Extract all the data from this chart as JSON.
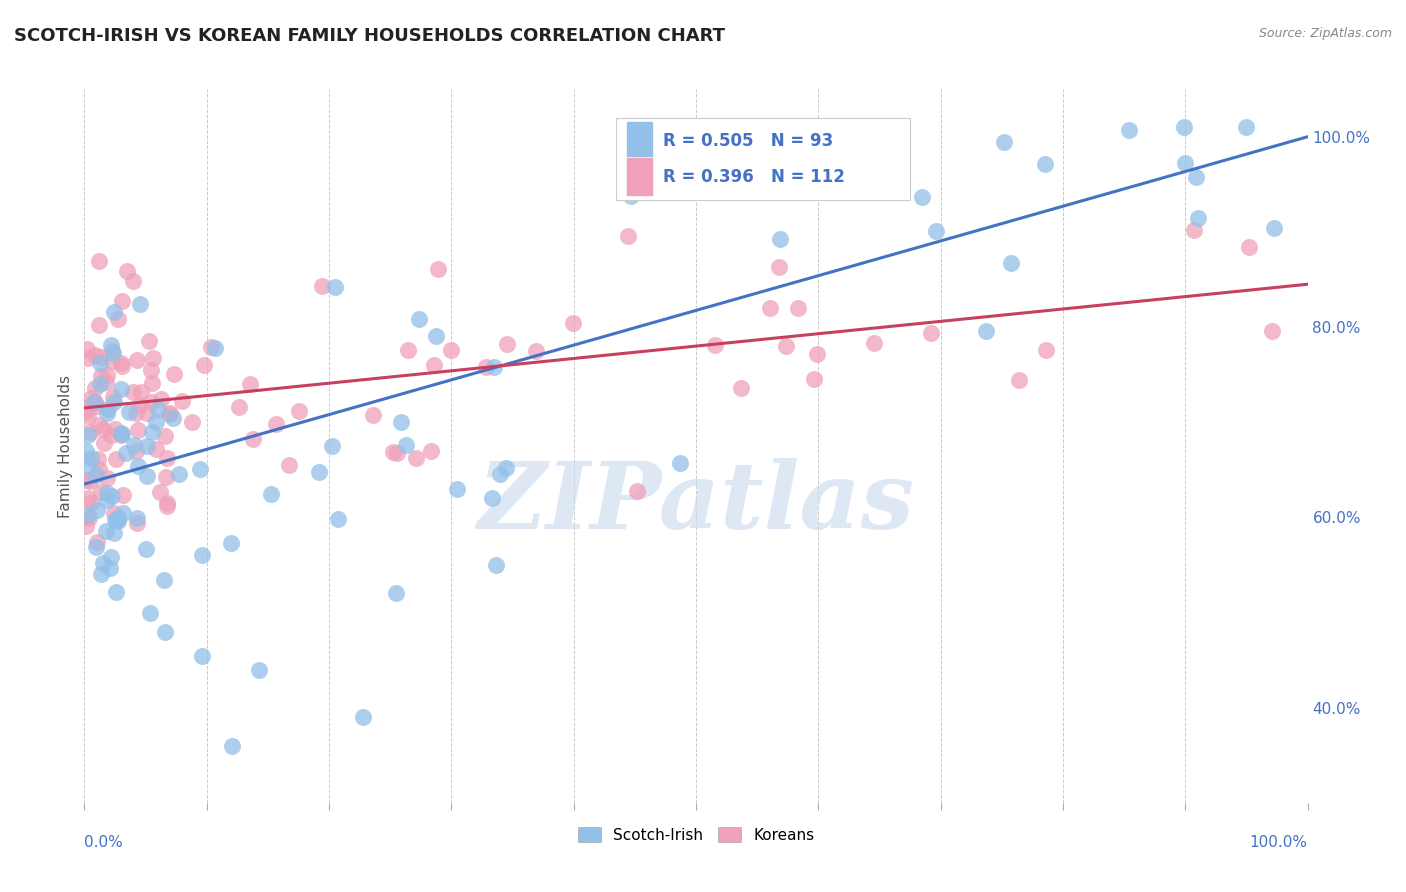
{
  "title": "SCOTCH-IRISH VS KOREAN FAMILY HOUSEHOLDS CORRELATION CHART",
  "source": "Source: ZipAtlas.com",
  "legend_label1": "Scotch-Irish",
  "legend_label2": "Koreans",
  "scotch_irish_color": "#92C0E8",
  "korean_color": "#F0A0B8",
  "scotch_irish_line_color": "#4472C4",
  "korean_line_color": "#C84060",
  "watermark_text": "ZIPatlas",
  "watermark_color": "#C8D8EE",
  "background_color": "#ffffff",
  "grid_color": "#CCCCCC",
  "xlim": [
    0.0,
    1.0
  ],
  "ylim": [
    0.3,
    1.05
  ],
  "right_yticks": [
    0.4,
    0.6,
    0.8,
    1.0
  ],
  "right_ytick_labels": [
    "40.0%",
    "60.0%",
    "80.0%",
    "100.0%"
  ],
  "tick_color": "#4472C4",
  "ylabel": "Family Households",
  "legend_r1": "R = 0.505",
  "legend_n1": "N = 93",
  "legend_r2": "R = 0.396",
  "legend_n2": "N = 112",
  "si_line_x": [
    0.0,
    1.0
  ],
  "si_line_y": [
    0.635,
    1.0
  ],
  "k_line_x": [
    0.0,
    1.0
  ],
  "k_line_y": [
    0.715,
    0.845
  ]
}
